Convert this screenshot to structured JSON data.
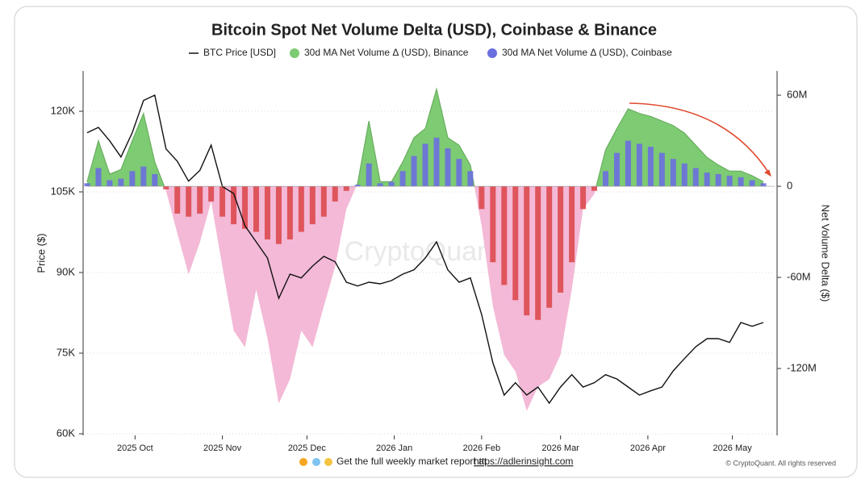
{
  "chart_data": {
    "type": "combo",
    "title": "Bitcoin Spot Net Volume Delta (USD), Coinbase & Binance",
    "y_label": "Price ($)",
    "y2_label": "Net Volume Delta ($)",
    "watermark": "CryptoQuant",
    "footer_text": "Get the full weekly market report at",
    "footer_link": "https://adlerinsight.com",
    "credit": "© CryptoQuant. All rights reserved",
    "x": [
      0,
      4,
      8,
      12,
      16,
      20,
      24,
      28,
      32,
      36,
      40,
      44,
      48,
      52,
      56,
      60,
      64,
      68,
      72,
      76,
      80,
      84,
      88,
      92,
      96,
      100,
      104,
      108,
      112,
      116,
      120,
      124,
      128,
      132,
      136,
      140,
      144,
      148,
      152,
      156,
      160,
      164,
      168,
      172,
      176,
      180,
      184,
      188,
      192,
      196,
      200,
      204,
      208,
      212,
      216,
      220,
      224,
      228,
      232,
      236,
      240
    ],
    "xlim": [
      0,
      244
    ],
    "xticks": [
      {
        "value": 17,
        "label": "2025 Oct"
      },
      {
        "value": 48,
        "label": "2025 Nov"
      },
      {
        "value": 78,
        "label": "2025 Dec"
      },
      {
        "value": 109,
        "label": "2026 Jan"
      },
      {
        "value": 140,
        "label": "2026 Feb"
      },
      {
        "value": 168,
        "label": "2026 Mar"
      },
      {
        "value": 199,
        "label": "2026 Apr"
      },
      {
        "value": 229,
        "label": "2026 May"
      }
    ],
    "ylim": [
      60000,
      127200
    ],
    "yticks": [
      {
        "value": 60000,
        "label": "60K"
      },
      {
        "value": 75000,
        "label": "75K"
      },
      {
        "value": 90000,
        "label": "90K"
      },
      {
        "value": 105000,
        "label": "105K"
      },
      {
        "value": 120000,
        "label": "120K"
      }
    ],
    "y2lim": [
      -163000000,
      74900000
    ],
    "y2ticks": [
      {
        "value": -120000000,
        "label": "-120M"
      },
      {
        "value": -60000000,
        "label": "-60M"
      },
      0,
      {
        "value": 60000000,
        "label": "60M"
      }
    ],
    "grid": true,
    "series": [
      {
        "name": "BTC Price [USD]",
        "type": "line",
        "color": "#111111",
        "values": [
          116000,
          117000,
          114500,
          111500,
          116000,
          122000,
          123000,
          113000,
          110700,
          107000,
          109000,
          113700,
          106000,
          104700,
          98700,
          95700,
          92700,
          85200,
          89700,
          89000,
          91200,
          93000,
          92000,
          88200,
          87500,
          88200,
          87900,
          88500,
          89700,
          90500,
          92700,
          95700,
          90500,
          88200,
          89000,
          82200,
          73200,
          67200,
          69500,
          67200,
          68700,
          65700,
          68700,
          71000,
          68700,
          69500,
          71000,
          70200,
          68700,
          67200,
          68000,
          68700,
          71700,
          74000,
          76200,
          77700,
          77700,
          77000,
          80700,
          80000,
          80700
        ]
      },
      {
        "name": "30d MA Net Volume Δ (USD), Binance",
        "type": "area",
        "axis": "y2",
        "color": "#7dcb72",
        "negative_color": "#f3b9d6",
        "values": [
          3000000,
          30000000,
          8000000,
          11000000,
          30000000,
          48000000,
          16000000,
          -3000000,
          -31000000,
          -58000000,
          -37000000,
          -10000000,
          -53000000,
          -95000000,
          -106000000,
          -68000000,
          -100000000,
          -143000000,
          -127000000,
          -95000000,
          -106000000,
          -79000000,
          -53000000,
          -15000000,
          2000000,
          43000000,
          3000000,
          3000000,
          16000000,
          32000000,
          38000000,
          64000000,
          32000000,
          27000000,
          14000000,
          -26000000,
          -79000000,
          -111000000,
          -122000000,
          -148000000,
          -132000000,
          -127000000,
          -111000000,
          -68000000,
          -15000000,
          -5000000,
          24000000,
          38000000,
          51000000,
          48000000,
          46000000,
          43000000,
          40000000,
          35000000,
          27000000,
          19000000,
          14000000,
          10000000,
          10000000,
          7000000,
          3000000
        ]
      },
      {
        "name": "30d MA Net Volume Δ (USD), Coinbase",
        "type": "bar",
        "axis": "y2",
        "color": "#6b6fe0",
        "negative_color": "#dd4a4f",
        "values": [
          2000000,
          12000000,
          4000000,
          5000000,
          10000000,
          13000000,
          8000000,
          -2000000,
          -18000000,
          -20000000,
          -18000000,
          -10000000,
          -20000000,
          -25000000,
          -28000000,
          -30000000,
          -35000000,
          -38000000,
          -35000000,
          -30000000,
          -25000000,
          -20000000,
          -10000000,
          -3000000,
          1000000,
          15000000,
          2000000,
          3000000,
          10000000,
          20000000,
          28000000,
          32000000,
          25000000,
          18000000,
          10000000,
          -15000000,
          -50000000,
          -65000000,
          -75000000,
          -85000000,
          -88000000,
          -80000000,
          -70000000,
          -50000000,
          -15000000,
          -3000000,
          10000000,
          22000000,
          30000000,
          28000000,
          26000000,
          22000000,
          18000000,
          15000000,
          12000000,
          9000000,
          8000000,
          7000000,
          6000000,
          4000000,
          2000000
        ]
      }
    ]
  }
}
